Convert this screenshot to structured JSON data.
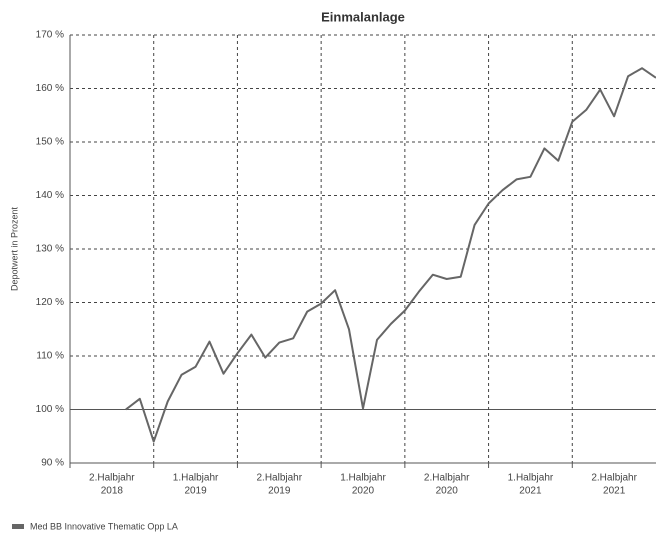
{
  "chart_data": {
    "type": "line",
    "title": "Einmalanlage",
    "y_label": "Depotwert in Prozent",
    "x_labels": [
      [
        "2.Halbjahr",
        "2018"
      ],
      [
        "1.Halbjahr",
        "2019"
      ],
      [
        "2.Halbjahr",
        "2019"
      ],
      [
        "1.Halbjahr",
        "2020"
      ],
      [
        "2.Halbjahr",
        "2020"
      ],
      [
        "1.Halbjahr",
        "2021"
      ],
      [
        "2.Halbjahr",
        "2021"
      ]
    ],
    "categories": [
      null,
      null,
      null,
      null,
      null,
      null,
      null,
      null,
      null,
      null,
      null,
      null,
      null,
      null,
      null,
      null,
      null,
      null,
      null,
      null,
      null,
      null,
      null,
      null,
      null,
      null,
      null,
      null,
      null,
      null,
      null,
      null,
      null,
      null,
      null,
      null,
      null,
      null,
      null
    ],
    "series": [
      {
        "name": "Med BB Innovative Thematic Opp LA",
        "color": "#666666",
        "values": [
          100,
          102,
          94,
          101.5,
          106.5,
          108,
          112.7,
          106.7,
          110.5,
          114,
          109.7,
          112.5,
          113.3,
          118.3,
          119.8,
          122.3,
          115,
          100.2,
          113,
          116,
          118.5,
          122,
          125.2,
          124.4,
          124.8,
          134.5,
          138.5,
          141,
          143,
          143.5,
          148.8,
          146.5,
          153.8,
          156,
          159.8,
          154.8,
          162.3,
          163.8,
          162
        ]
      }
    ],
    "ylim": [
      90,
      170
    ],
    "yticks": [
      {
        "value": 90,
        "label": "90 %"
      },
      {
        "value": 100,
        "label": "100 %"
      },
      {
        "value": 110,
        "label": "110 %"
      },
      {
        "value": 120,
        "label": "120 %"
      },
      {
        "value": 130,
        "label": "130 %"
      },
      {
        "value": 140,
        "label": "140 %"
      },
      {
        "value": 150,
        "label": "150 %"
      },
      {
        "value": 160,
        "label": "160 %"
      },
      {
        "value": 170,
        "label": "170 %"
      }
    ],
    "baseline": 100,
    "grid": true
  }
}
